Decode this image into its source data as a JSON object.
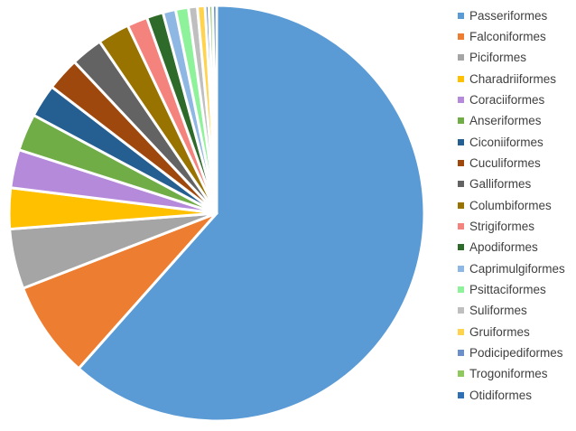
{
  "chart_data": {
    "type": "pie",
    "title": "",
    "legend_position": "right",
    "series": [
      {
        "name": "Passeriformes",
        "value": 62.0,
        "color": "#5B9BD5"
      },
      {
        "name": "Falconiformes",
        "value": 7.6,
        "color": "#ED7D31"
      },
      {
        "name": "Piciformes",
        "value": 4.7,
        "color": "#A5A5A5"
      },
      {
        "name": "Charadriiformes",
        "value": 3.2,
        "color": "#FFC000"
      },
      {
        "name": "Coraciiformes",
        "value": 3.0,
        "color": "#B58ADB"
      },
      {
        "name": "Anseriformes",
        "value": 2.9,
        "color": "#70AD47"
      },
      {
        "name": "Ciconiiformes",
        "value": 2.6,
        "color": "#255E91"
      },
      {
        "name": "Cuculiformes",
        "value": 2.6,
        "color": "#9E480E"
      },
      {
        "name": "Galliformes",
        "value": 2.5,
        "color": "#636363"
      },
      {
        "name": "Columbiformes",
        "value": 2.5,
        "color": "#997300"
      },
      {
        "name": "Strigiformes",
        "value": 1.6,
        "color": "#F4837D"
      },
      {
        "name": "Apodiformes",
        "value": 1.3,
        "color": "#2E6B2A"
      },
      {
        "name": "Caprimulgiformes",
        "value": 1.0,
        "color": "#8FB7E3"
      },
      {
        "name": "Psittaciformes",
        "value": 1.0,
        "color": "#8EF29A"
      },
      {
        "name": "Suliformes",
        "value": 0.7,
        "color": "#BFBFBF"
      },
      {
        "name": "Gruiformes",
        "value": 0.6,
        "color": "#FFD34D"
      },
      {
        "name": "Podicipediformes",
        "value": 0.3,
        "color": "#6A8FC9"
      },
      {
        "name": "Trogoniformes",
        "value": 0.3,
        "color": "#8FC85C"
      },
      {
        "name": "Otidiformes",
        "value": 0.3,
        "color": "#2F70B5"
      }
    ]
  }
}
